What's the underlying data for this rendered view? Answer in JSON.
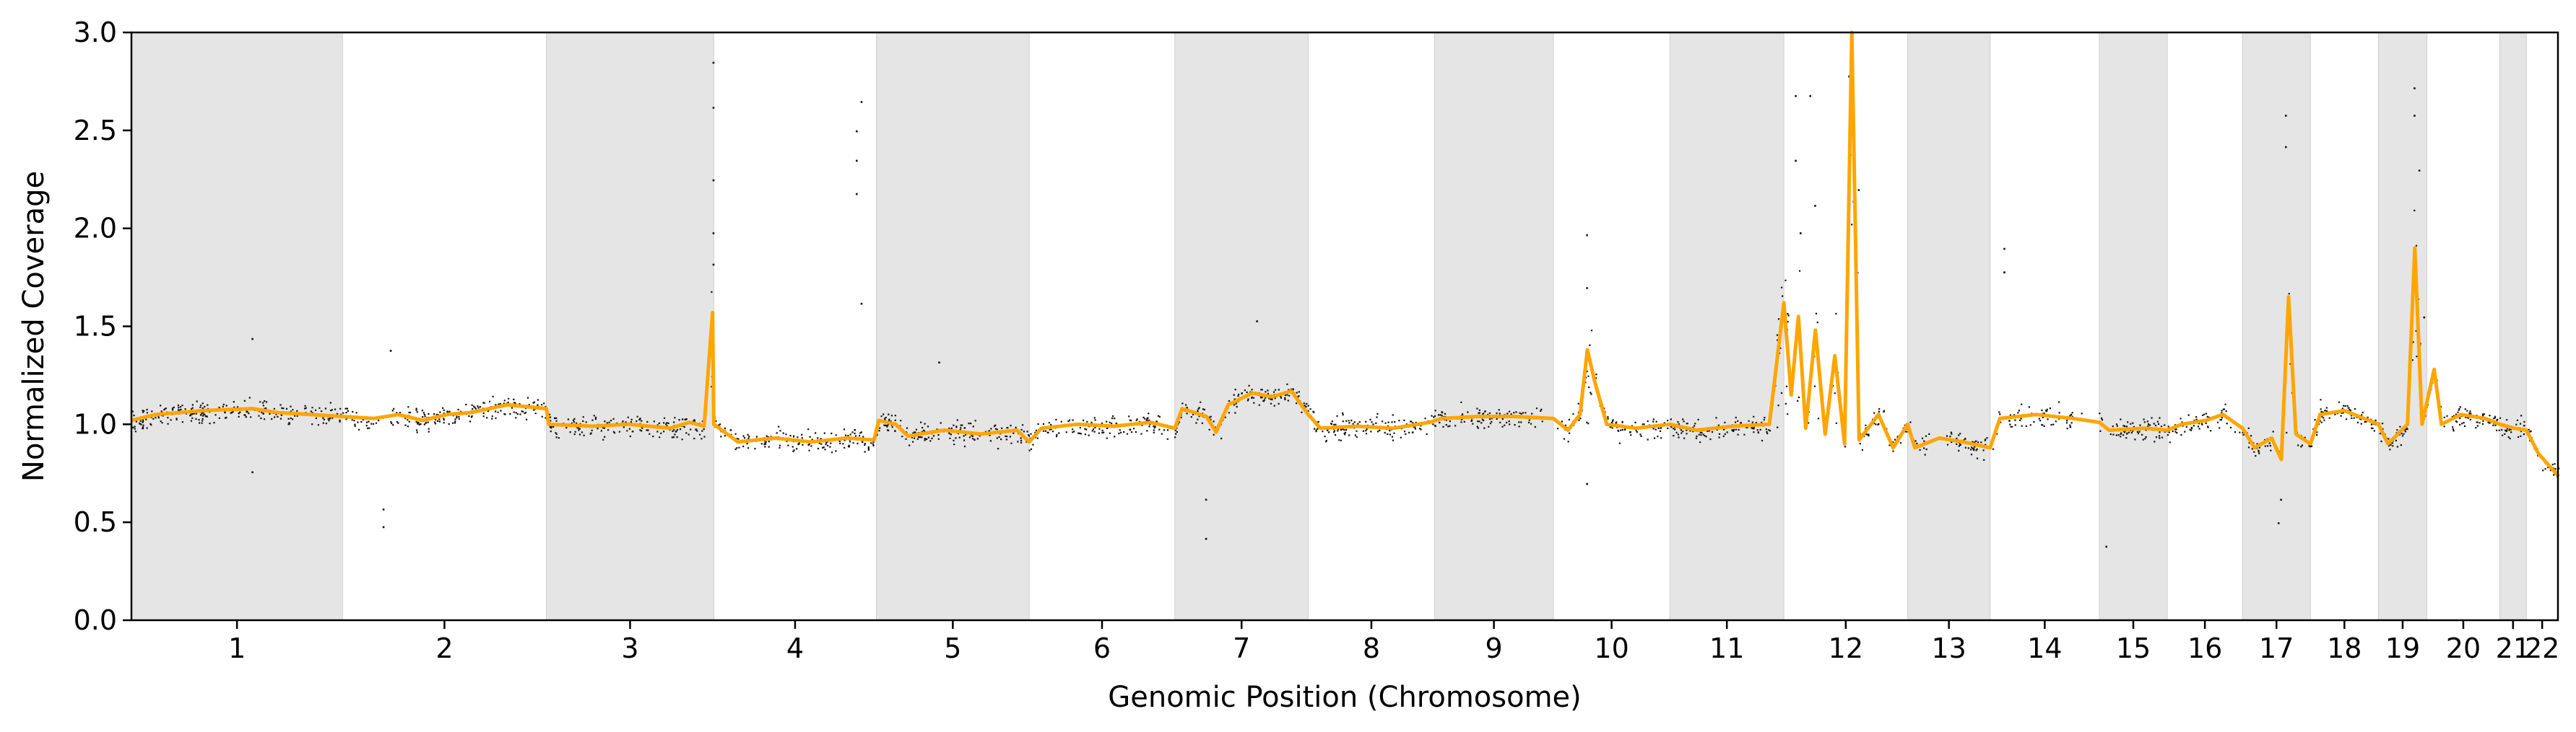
{
  "chart_data": {
    "type": "scatter",
    "title": "",
    "xlabel": "Genomic Position (Chromosome)",
    "ylabel": "Normalized Coverage",
    "ylim": [
      0.0,
      3.0
    ],
    "yticks": [
      "0.0",
      "0.5",
      "1.0",
      "1.5",
      "2.0",
      "2.5",
      "3.0"
    ],
    "grid": false,
    "legend": "none",
    "band_fill": "#e5e5e5",
    "point_color": "#111111",
    "segment_color": "#ffa500",
    "chromosomes": [
      {
        "label": "1",
        "start": 0.0,
        "end": 0.087,
        "shaded": true,
        "base": 1.05
      },
      {
        "label": "2",
        "start": 0.087,
        "end": 0.171,
        "shaded": false,
        "base": 1.06
      },
      {
        "label": "3",
        "start": 0.171,
        "end": 0.24,
        "shaded": true,
        "base": 1.0
      },
      {
        "label": "4",
        "start": 0.24,
        "end": 0.307,
        "shaded": false,
        "base": 0.94
      },
      {
        "label": "5",
        "start": 0.307,
        "end": 0.37,
        "shaded": true,
        "base": 0.97
      },
      {
        "label": "6",
        "start": 0.37,
        "end": 0.43,
        "shaded": false,
        "base": 0.99
      },
      {
        "label": "7",
        "start": 0.43,
        "end": 0.485,
        "shaded": true,
        "base": 1.1
      },
      {
        "label": "8",
        "start": 0.485,
        "end": 0.537,
        "shaded": false,
        "base": 0.98
      },
      {
        "label": "9",
        "start": 0.537,
        "end": 0.586,
        "shaded": true,
        "base": 1.03
      },
      {
        "label": "10",
        "start": 0.586,
        "end": 0.634,
        "shaded": false,
        "base": 1.0
      },
      {
        "label": "11",
        "start": 0.634,
        "end": 0.681,
        "shaded": true,
        "base": 1.0
      },
      {
        "label": "12",
        "start": 0.681,
        "end": 0.732,
        "shaded": false,
        "base": 1.02
      },
      {
        "label": "13",
        "start": 0.732,
        "end": 0.766,
        "shaded": true,
        "base": 0.92
      },
      {
        "label": "14",
        "start": 0.766,
        "end": 0.811,
        "shaded": false,
        "base": 1.03
      },
      {
        "label": "15",
        "start": 0.811,
        "end": 0.839,
        "shaded": true,
        "base": 0.97
      },
      {
        "label": "16",
        "start": 0.839,
        "end": 0.87,
        "shaded": false,
        "base": 1.01
      },
      {
        "label": "17",
        "start": 0.87,
        "end": 0.898,
        "shaded": true,
        "base": 0.93
      },
      {
        "label": "18",
        "start": 0.898,
        "end": 0.926,
        "shaded": false,
        "base": 1.05
      },
      {
        "label": "19",
        "start": 0.926,
        "end": 0.946,
        "shaded": true,
        "base": 0.95
      },
      {
        "label": "20",
        "start": 0.946,
        "end": 0.976,
        "shaded": false,
        "base": 1.02
      },
      {
        "label": "21",
        "start": 0.976,
        "end": 0.987,
        "shaded": true,
        "base": 0.98
      },
      {
        "label": "22",
        "start": 0.987,
        "end": 1.0,
        "shaded": false,
        "base": 0.85
      }
    ],
    "segments": [
      [
        0.0,
        1.02
      ],
      [
        0.01,
        1.05
      ],
      [
        0.03,
        1.07
      ],
      [
        0.05,
        1.08
      ],
      [
        0.06,
        1.06
      ],
      [
        0.087,
        1.04
      ],
      [
        0.1,
        1.03
      ],
      [
        0.11,
        1.05
      ],
      [
        0.12,
        1.02
      ],
      [
        0.13,
        1.05
      ],
      [
        0.14,
        1.06
      ],
      [
        0.155,
        1.1
      ],
      [
        0.171,
        1.08
      ],
      [
        0.172,
        1.0
      ],
      [
        0.19,
        0.99
      ],
      [
        0.205,
        1.0
      ],
      [
        0.222,
        0.98
      ],
      [
        0.23,
        1.01
      ],
      [
        0.236,
        0.99
      ],
      [
        0.2395,
        1.57
      ],
      [
        0.24,
        1.0
      ],
      [
        0.25,
        0.91
      ],
      [
        0.265,
        0.93
      ],
      [
        0.28,
        0.91
      ],
      [
        0.295,
        0.93
      ],
      [
        0.306,
        0.92
      ],
      [
        0.308,
        1.02
      ],
      [
        0.315,
        1.0
      ],
      [
        0.32,
        0.94
      ],
      [
        0.335,
        0.97
      ],
      [
        0.35,
        0.95
      ],
      [
        0.365,
        0.97
      ],
      [
        0.37,
        0.91
      ],
      [
        0.375,
        0.98
      ],
      [
        0.39,
        1.0
      ],
      [
        0.405,
        0.99
      ],
      [
        0.42,
        1.01
      ],
      [
        0.43,
        0.98
      ],
      [
        0.433,
        1.08
      ],
      [
        0.443,
        1.04
      ],
      [
        0.447,
        0.96
      ],
      [
        0.452,
        1.1
      ],
      [
        0.462,
        1.16
      ],
      [
        0.47,
        1.14
      ],
      [
        0.478,
        1.17
      ],
      [
        0.485,
        1.05
      ],
      [
        0.49,
        0.98
      ],
      [
        0.505,
        0.99
      ],
      [
        0.52,
        0.98
      ],
      [
        0.535,
        1.01
      ],
      [
        0.54,
        1.03
      ],
      [
        0.555,
        1.04
      ],
      [
        0.57,
        1.04
      ],
      [
        0.586,
        1.03
      ],
      [
        0.592,
        0.97
      ],
      [
        0.597,
        1.05
      ],
      [
        0.6,
        1.38
      ],
      [
        0.603,
        1.22
      ],
      [
        0.608,
        1.0
      ],
      [
        0.62,
        0.98
      ],
      [
        0.634,
        1.0
      ],
      [
        0.645,
        0.97
      ],
      [
        0.66,
        0.99
      ],
      [
        0.675,
        1.0
      ],
      [
        0.681,
        1.62
      ],
      [
        0.684,
        1.15
      ],
      [
        0.687,
        1.55
      ],
      [
        0.69,
        0.98
      ],
      [
        0.694,
        1.48
      ],
      [
        0.698,
        0.95
      ],
      [
        0.702,
        1.35
      ],
      [
        0.706,
        0.9
      ],
      [
        0.709,
        3.0
      ],
      [
        0.712,
        0.92
      ],
      [
        0.72,
        1.05
      ],
      [
        0.726,
        0.88
      ],
      [
        0.732,
        1.0
      ],
      [
        0.735,
        0.88
      ],
      [
        0.745,
        0.93
      ],
      [
        0.755,
        0.91
      ],
      [
        0.766,
        0.88
      ],
      [
        0.77,
        1.03
      ],
      [
        0.785,
        1.05
      ],
      [
        0.8,
        1.03
      ],
      [
        0.811,
        1.01
      ],
      [
        0.815,
        0.97
      ],
      [
        0.83,
        0.98
      ],
      [
        0.839,
        0.97
      ],
      [
        0.845,
        1.0
      ],
      [
        0.855,
        1.02
      ],
      [
        0.862,
        1.05
      ],
      [
        0.87,
        0.98
      ],
      [
        0.875,
        0.88
      ],
      [
        0.882,
        0.93
      ],
      [
        0.886,
        0.82
      ],
      [
        0.889,
        1.65
      ],
      [
        0.892,
        0.95
      ],
      [
        0.898,
        0.9
      ],
      [
        0.902,
        1.05
      ],
      [
        0.912,
        1.07
      ],
      [
        0.926,
        1.0
      ],
      [
        0.93,
        0.9
      ],
      [
        0.938,
        1.0
      ],
      [
        0.941,
        1.9
      ],
      [
        0.944,
        1.0
      ],
      [
        0.949,
        1.28
      ],
      [
        0.952,
        1.0
      ],
      [
        0.96,
        1.05
      ],
      [
        0.97,
        1.03
      ],
      [
        0.976,
        1.0
      ],
      [
        0.982,
        0.98
      ],
      [
        0.987,
        0.97
      ],
      [
        0.992,
        0.85
      ],
      [
        0.997,
        0.78
      ],
      [
        1.0,
        0.74
      ]
    ],
    "outliers": [
      [
        0.0495,
        0.76
      ],
      [
        0.0495,
        1.44
      ],
      [
        0.1035,
        0.57
      ],
      [
        0.1035,
        0.48
      ],
      [
        0.1065,
        1.38
      ],
      [
        0.2395,
        2.85
      ],
      [
        0.2395,
        2.62
      ],
      [
        0.2395,
        1.98
      ],
      [
        0.2395,
        1.82
      ],
      [
        0.2395,
        2.25
      ],
      [
        0.2985,
        2.5
      ],
      [
        0.2985,
        2.35
      ],
      [
        0.2985,
        2.18
      ],
      [
        0.3005,
        1.62
      ],
      [
        0.3005,
        2.65
      ],
      [
        0.3325,
        1.32
      ],
      [
        0.4425,
        0.42
      ],
      [
        0.4425,
        0.62
      ],
      [
        0.4635,
        1.53
      ],
      [
        0.5995,
        1.97
      ],
      [
        0.5995,
        1.7
      ],
      [
        0.5995,
        0.7
      ],
      [
        0.6855,
        2.68
      ],
      [
        0.6855,
        2.35
      ],
      [
        0.6875,
        1.98
      ],
      [
        0.6915,
        2.68
      ],
      [
        0.6935,
        2.12
      ],
      [
        0.7075,
        2.78
      ],
      [
        0.7075,
        2.45
      ],
      [
        0.7085,
        2.68
      ],
      [
        0.7115,
        2.2
      ],
      [
        0.7715,
        1.9
      ],
      [
        0.7715,
        1.78
      ],
      [
        0.8135,
        0.38
      ],
      [
        0.8875,
        2.58
      ],
      [
        0.8875,
        2.42
      ],
      [
        0.8855,
        0.62
      ],
      [
        0.8845,
        0.5
      ],
      [
        0.9405,
        2.72
      ],
      [
        0.9405,
        2.58
      ],
      [
        0.9425,
        2.3
      ],
      [
        0.9445,
        1.55
      ]
    ]
  }
}
